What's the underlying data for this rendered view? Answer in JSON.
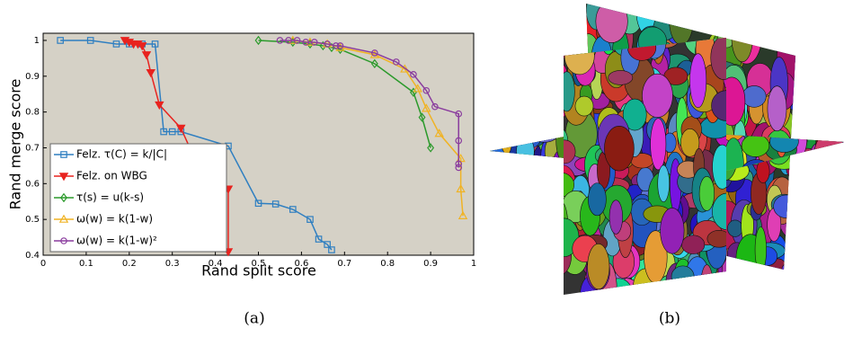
{
  "chart_data": {
    "type": "line",
    "xlabel": "Rand split score",
    "ylabel": "Rand merge score",
    "xlim": [
      0,
      1
    ],
    "ylim": [
      0.4,
      1.02
    ],
    "xticks": [
      0,
      0.1,
      0.2,
      0.3,
      0.4,
      0.5,
      0.6,
      0.7,
      0.8,
      0.9,
      1
    ],
    "yticks": [
      0.4,
      0.5,
      0.6,
      0.7,
      0.8,
      0.9,
      1
    ],
    "background": "#d5d1c6",
    "legend": "lower left",
    "series": [
      {
        "name": "Felz. τ(C) = k/|C|",
        "color": "#2f7fc1",
        "marker": "square",
        "x": [
          0.04,
          0.11,
          0.17,
          0.2,
          0.23,
          0.26,
          0.28,
          0.3,
          0.32,
          0.43,
          0.5,
          0.54,
          0.58,
          0.62,
          0.64,
          0.66,
          0.67
        ],
        "values": [
          1.0,
          1.0,
          0.99,
          0.99,
          0.99,
          0.99,
          0.745,
          0.745,
          0.745,
          0.705,
          0.545,
          0.543,
          0.528,
          0.5,
          0.445,
          0.43,
          0.415
        ]
      },
      {
        "name": "Felz. on WBG",
        "color": "#e8231f",
        "marker": "triangle-down",
        "filled": true,
        "x": [
          0.19,
          0.2,
          0.21,
          0.22,
          0.23,
          0.24,
          0.25,
          0.27,
          0.32,
          0.35,
          0.38,
          0.4,
          0.41,
          0.43,
          0.43
        ],
        "values": [
          1.0,
          0.995,
          0.99,
          0.99,
          0.985,
          0.96,
          0.91,
          0.82,
          0.755,
          0.675,
          0.63,
          0.6,
          0.59,
          0.585,
          0.41
        ]
      },
      {
        "name": "τ(s) = u(k-s)",
        "color": "#2b9a2b",
        "marker": "diamond",
        "x": [
          0.5,
          0.58,
          0.62,
          0.65,
          0.67,
          0.69,
          0.77,
          0.86,
          0.88,
          0.9
        ],
        "values": [
          1.0,
          0.995,
          0.99,
          0.985,
          0.98,
          0.975,
          0.935,
          0.855,
          0.785,
          0.7
        ]
      },
      {
        "name": "ω(w) = k(1-w)",
        "color": "#f0b324",
        "marker": "triangle-up",
        "x": [
          0.58,
          0.62,
          0.66,
          0.69,
          0.77,
          0.84,
          0.87,
          0.89,
          0.92,
          0.97,
          0.97,
          0.975
        ],
        "values": [
          1.0,
          0.995,
          0.99,
          0.98,
          0.96,
          0.92,
          0.865,
          0.81,
          0.74,
          0.67,
          0.585,
          0.51
        ]
      },
      {
        "name": "ω(w) = k(1-w)²",
        "color": "#8a3c9e",
        "marker": "circle",
        "x": [
          0.55,
          0.57,
          0.59,
          0.61,
          0.63,
          0.66,
          0.68,
          0.69,
          0.77,
          0.82,
          0.86,
          0.89,
          0.91,
          0.965,
          0.965,
          0.965,
          0.965
        ],
        "values": [
          1.0,
          1.0,
          1.0,
          0.995,
          0.995,
          0.99,
          0.985,
          0.985,
          0.965,
          0.94,
          0.905,
          0.86,
          0.815,
          0.795,
          0.72,
          0.655,
          0.645
        ]
      }
    ]
  },
  "captions": [
    "(a)",
    "(b)"
  ]
}
